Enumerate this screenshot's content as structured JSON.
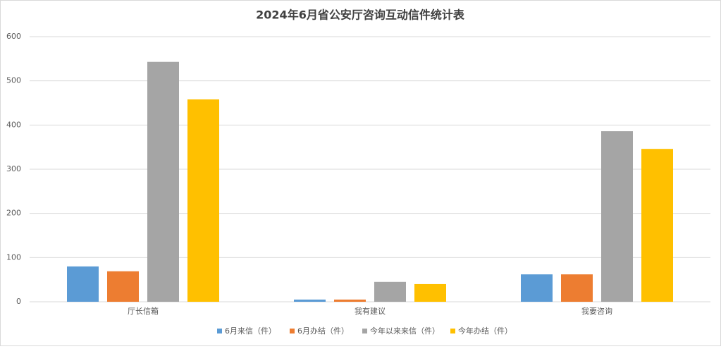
{
  "chart_data": {
    "type": "bar",
    "title": "2024年6月省公安厅咨询互动信件统计表",
    "categories": [
      "厅长信箱",
      "我有建议",
      "我要咨询"
    ],
    "series": [
      {
        "name": "6月来信（件）",
        "color": "#5b9bd5",
        "values": [
          80,
          5,
          62
        ]
      },
      {
        "name": "6月办结（件）",
        "color": "#ed7d31",
        "values": [
          69,
          5,
          62
        ]
      },
      {
        "name": "今年以来来信（件）",
        "color": "#a5a5a5",
        "values": [
          543,
          45,
          386
        ]
      },
      {
        "name": "今年办结（件）",
        "color": "#ffc000",
        "values": [
          458,
          40,
          346
        ]
      }
    ],
    "ylim": [
      0,
      600
    ],
    "yticks": [
      0,
      100,
      200,
      300,
      400,
      500,
      600
    ],
    "grid": true,
    "legend": "bottom"
  }
}
